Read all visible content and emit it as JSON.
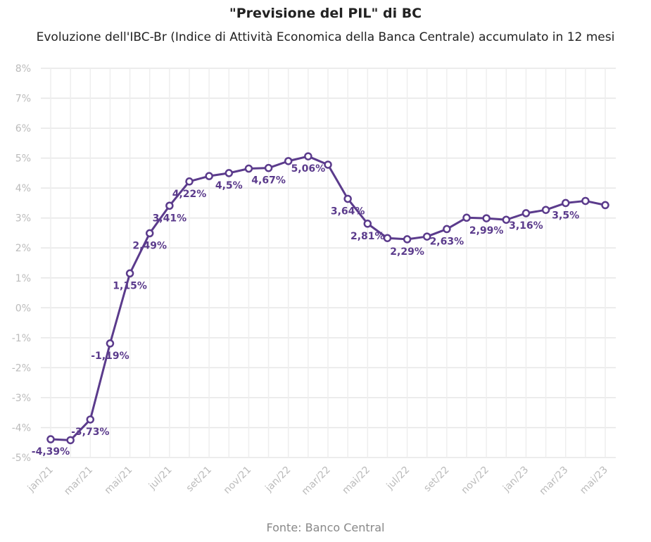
{
  "chart_data": {
    "type": "line",
    "title": "\"Previsione del PIL\" di BC",
    "subtitle": "Evoluzione dell'IBC-Br (Indice di Attività Economica della Banca Centrale) accumulato in 12 mesi",
    "source": "Fonte: Banco Central",
    "ylim": [
      -5,
      8
    ],
    "yticks": [
      -5,
      -4,
      -3,
      -2,
      -1,
      0,
      1,
      2,
      3,
      4,
      5,
      6,
      7,
      8
    ],
    "ytick_labels": [
      "-5%",
      "-4%",
      "-3%",
      "-2%",
      "-1%",
      "0%",
      "1%",
      "2%",
      "3%",
      "4%",
      "5%",
      "6%",
      "7%",
      "8%"
    ],
    "grid": true,
    "line_color": "#5b3b8c",
    "categories": [
      "jan/21",
      "feb/21",
      "mar/21",
      "apr/21",
      "mai/21",
      "jun/21",
      "jul/21",
      "ago/21",
      "set/21",
      "out/21",
      "nov/21",
      "dez/21",
      "jan/22",
      "feb/22",
      "mar/22",
      "apr/22",
      "mai/22",
      "jun/22",
      "jul/22",
      "ago/22",
      "set/22",
      "out/22",
      "nov/22",
      "dez/22",
      "jan/23",
      "feb/23",
      "mar/23",
      "apr/23",
      "mai/23"
    ],
    "x_tick_labels": [
      "jan/21",
      "mar/21",
      "mai/21",
      "jul/21",
      "set/21",
      "nov/21",
      "jan/22",
      "mar/22",
      "mai/22",
      "jul/22",
      "set/22",
      "nov/22",
      "jan/23",
      "mar/23",
      "mai/23"
    ],
    "series": [
      {
        "values": [
          -4.39,
          -4.42,
          -3.73,
          -1.19,
          1.15,
          2.49,
          3.41,
          4.22,
          4.4,
          4.5,
          4.65,
          4.67,
          4.9,
          5.06,
          4.78,
          3.64,
          2.81,
          2.33,
          2.29,
          2.38,
          2.63,
          3.01,
          2.99,
          2.94,
          3.16,
          3.27,
          3.5,
          3.57,
          3.43
        ]
      }
    ],
    "data_labels": [
      {
        "index": 0,
        "text": "-4,39%"
      },
      {
        "index": 2,
        "text": "-3,73%"
      },
      {
        "index": 3,
        "text": "-1,19%"
      },
      {
        "index": 4,
        "text": "1,15%"
      },
      {
        "index": 5,
        "text": "2,49%"
      },
      {
        "index": 6,
        "text": "3,41%"
      },
      {
        "index": 7,
        "text": "4,22%"
      },
      {
        "index": 9,
        "text": "4,5%"
      },
      {
        "index": 11,
        "text": "4,67%"
      },
      {
        "index": 13,
        "text": "5,06%"
      },
      {
        "index": 15,
        "text": "3,64%"
      },
      {
        "index": 16,
        "text": "2,81%"
      },
      {
        "index": 18,
        "text": "2,29%"
      },
      {
        "index": 20,
        "text": "2,63%"
      },
      {
        "index": 22,
        "text": "2,99%"
      },
      {
        "index": 24,
        "text": "3,16%"
      },
      {
        "index": 26,
        "text": "3,5%"
      }
    ]
  }
}
